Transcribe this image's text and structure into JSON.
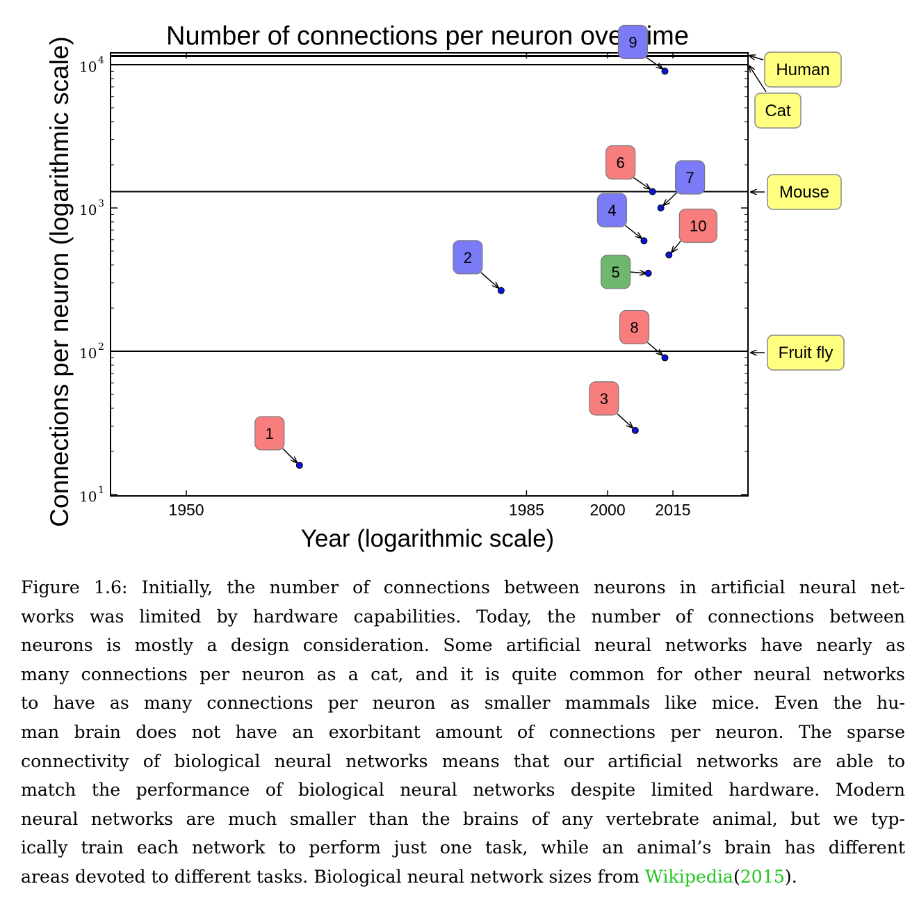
{
  "chart_data": {
    "type": "scatter",
    "title": "Number of connections per neuron over time",
    "xlabel": "Year (logarithmic scale)",
    "ylabel": "Connections per neuron (logarithmic scale)",
    "x_scale": "log",
    "y_scale": "log",
    "x_ticks": [
      1950,
      1985,
      2000,
      2015
    ],
    "y_ticks": [
      {
        "base": "10",
        "exp": "1"
      },
      {
        "base": "10",
        "exp": "2"
      },
      {
        "base": "10",
        "exp": "3"
      },
      {
        "base": "10",
        "exp": "4"
      }
    ],
    "points": [
      {
        "label": "1",
        "x": 1958,
        "y": 16,
        "color": "#f87d7d"
      },
      {
        "label": "2",
        "x": 1981,
        "y": 265,
        "color": "#7b7bf7"
      },
      {
        "label": "3",
        "x": 2006,
        "y": 28,
        "color": "#f87d7d"
      },
      {
        "label": "4",
        "x": 2008,
        "y": 590,
        "color": "#7b7bf7"
      },
      {
        "label": "5",
        "x": 2009,
        "y": 350,
        "color": "#6fb66f"
      },
      {
        "label": "6",
        "x": 2010,
        "y": 1300,
        "color": "#f87d7d"
      },
      {
        "label": "7",
        "x": 2012,
        "y": 1000,
        "color": "#7b7bf7"
      },
      {
        "label": "8",
        "x": 2013,
        "y": 90,
        "color": "#f87d7d"
      },
      {
        "label": "9",
        "x": 2013,
        "y": 9000,
        "color": "#7b7bf7"
      },
      {
        "label": "10",
        "x": 2014,
        "y": 470,
        "color": "#f87d7d"
      }
    ],
    "reference_lines": [
      {
        "label": "Human",
        "y": 11500
      },
      {
        "label": "Cat",
        "y": 10000
      },
      {
        "label": "Mouse",
        "y": 1300
      },
      {
        "label": "Fruit fly",
        "y": 100
      }
    ],
    "colors": {
      "point": "#0a14d8",
      "reference_box": "#ffff80"
    }
  },
  "caption": {
    "lines": [
      "Figure 1.6: Initially, the number of connections between neurons in artificial neural net-",
      "works was limited by hardware capabilities. Today, the number of connections between",
      "neurons is mostly a design consideration. Some artificial neural networks have nearly as",
      "many connections per neuron as a cat, and it is quite common for other neural networks",
      "to have as many connections per neuron as smaller mammals like mice. Even the hu-",
      "man brain does not have an exorbitant amount of connections per neuron. The sparse",
      "connectivity of biological neural networks means that our artificial networks are able to",
      "match the performance of biological neural networks despite limited hardware. Modern",
      "neural networks are much smaller than the brains of any vertebrate animal, but we typ-",
      "ically train each network to perform just one task, while an animal’s brain has different"
    ],
    "last_line_text": "areas devoted to different tasks. Biological neural network sizes from",
    "link_text": "Wikipedia",
    "paren_open": "(",
    "year_text": "2015",
    "paren_close": ")."
  }
}
